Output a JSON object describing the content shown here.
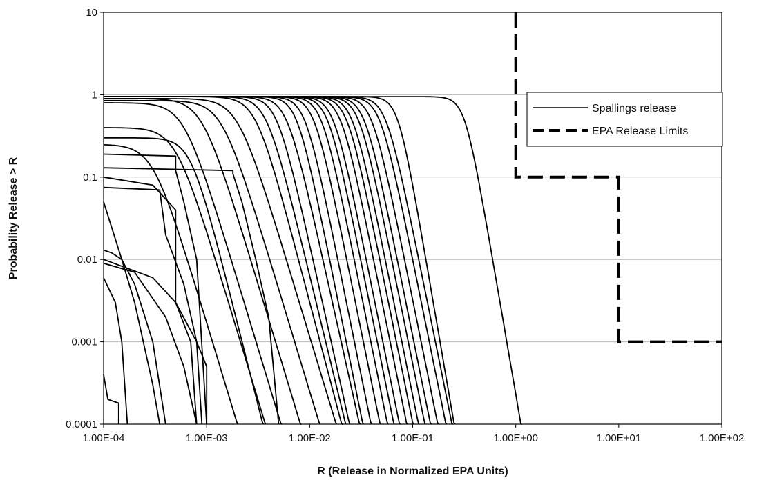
{
  "chart_data": {
    "type": "line",
    "title": "",
    "xlabel": "R (Release in Normalized EPA Units)",
    "ylabel": "Probability Release > R",
    "x_scale": "log",
    "y_scale": "log",
    "xlim": [
      0.0001,
      100
    ],
    "ylim": [
      0.0001,
      10
    ],
    "x_tick_labels": [
      "1.00E-04",
      "1.00E-03",
      "1.00E-02",
      "1.00E-01",
      "1.00E+00",
      "1.00E+01",
      "1.00E+02"
    ],
    "y_tick_labels": [
      "0.0001",
      "0.001",
      "0.01",
      "0.1",
      "1",
      "10"
    ],
    "grid": "horizontal",
    "legend_position": "top-right",
    "legend": [
      {
        "label": "Spallings release",
        "style": "solid",
        "color": "#000000"
      },
      {
        "label": "EPA Release Limits",
        "style": "dashed",
        "color": "#000000"
      }
    ],
    "series": [
      {
        "name": "EPA Release Limits",
        "style": "dashed",
        "points": [
          [
            1,
            10
          ],
          [
            1,
            0.1
          ],
          [
            10,
            0.1
          ],
          [
            10,
            0.001
          ],
          [
            100,
            0.001
          ]
        ]
      },
      {
        "name": "Spallings release",
        "style": "solid",
        "curves": [
          {
            "p0": 0.95,
            "r50": 0.32,
            "w": 0.17
          },
          {
            "p0": 0.95,
            "r50": 0.072,
            "w": 0.17
          },
          {
            "p0": 0.95,
            "r50": 0.055,
            "w": 0.2
          },
          {
            "p0": 0.95,
            "r50": 0.048,
            "w": 0.2
          },
          {
            "p0": 0.95,
            "r50": 0.04,
            "w": 0.2
          },
          {
            "p0": 0.95,
            "r50": 0.034,
            "w": 0.2
          },
          {
            "p0": 0.95,
            "r50": 0.03,
            "w": 0.2
          },
          {
            "p0": 0.95,
            "r50": 0.026,
            "w": 0.2
          },
          {
            "p0": 0.95,
            "r50": 0.023,
            "w": 0.2
          },
          {
            "p0": 0.95,
            "r50": 0.02,
            "w": 0.2
          },
          {
            "p0": 0.95,
            "r50": 0.017,
            "w": 0.2
          },
          {
            "p0": 0.95,
            "r50": 0.015,
            "w": 0.2
          },
          {
            "p0": 0.95,
            "r50": 0.013,
            "w": 0.2
          },
          {
            "p0": 0.95,
            "r50": 0.011,
            "w": 0.2
          },
          {
            "p0": 0.95,
            "r50": 0.009,
            "w": 0.2
          },
          {
            "p0": 0.95,
            "r50": 0.0075,
            "w": 0.2
          },
          {
            "p0": 0.95,
            "r50": 0.006,
            "w": 0.22
          },
          {
            "p0": 0.95,
            "r50": 0.0048,
            "w": 0.22
          },
          {
            "p0": 0.95,
            "r50": 0.0038,
            "w": 0.24
          },
          {
            "p0": 0.95,
            "r50": 0.003,
            "w": 0.26
          },
          {
            "p0": 0.9,
            "r50": 0.002,
            "w": 0.3
          },
          {
            "p0": 0.85,
            "r50": 0.0014,
            "w": 0.3
          },
          {
            "p0": 0.9,
            "r50": 0.0009,
            "w": 0.3
          },
          {
            "p0": 0.8,
            "r50": 0.0006,
            "w": 0.3
          },
          {
            "p0": 0.4,
            "r50": 0.0005,
            "w": 0.3
          },
          {
            "p0": 0.3,
            "r50": 0.0007,
            "w": 0.25
          },
          {
            "p0": 0.25,
            "r50": 0.0003,
            "w": 0.3
          }
        ],
        "steps": [
          [
            [
              0.0001,
              0.13
            ],
            [
              0.0018,
              0.12
            ],
            [
              0.0018,
              0.11
            ],
            [
              0.0022,
              0.05
            ],
            [
              0.003,
              0.01
            ],
            [
              0.004,
              0.002
            ],
            [
              0.005,
              0.0001
            ]
          ],
          [
            [
              0.0001,
              0.1
            ],
            [
              0.0003,
              0.08
            ],
            [
              0.0005,
              0.04
            ],
            [
              0.0005,
              0.003
            ],
            [
              0.0008,
              0.001
            ],
            [
              0.001,
              0.0005
            ],
            [
              0.001,
              0.0001
            ]
          ],
          [
            [
              0.0001,
              0.19
            ],
            [
              0.0005,
              0.18
            ],
            [
              0.0005,
              0.12
            ],
            [
              0.0006,
              0.05
            ],
            [
              0.0008,
              0.01
            ],
            [
              0.001,
              0.0001
            ]
          ],
          [
            [
              0.0001,
              0.075
            ],
            [
              0.00035,
              0.07
            ],
            [
              0.0004,
              0.02
            ],
            [
              0.0006,
              0.005
            ],
            [
              0.0008,
              0.001
            ],
            [
              0.0009,
              0.0001
            ]
          ],
          [
            [
              0.0001,
              0.013
            ],
            [
              0.00012,
              0.012
            ],
            [
              0.00015,
              0.01
            ],
            [
              0.0002,
              0.005
            ],
            [
              0.0003,
              0.001
            ],
            [
              0.0004,
              0.0001
            ]
          ],
          [
            [
              0.0001,
              0.009
            ],
            [
              0.0002,
              0.007
            ],
            [
              0.0004,
              0.002
            ],
            [
              0.0006,
              0.0005
            ],
            [
              0.0008,
              0.0001
            ]
          ],
          [
            [
              0.0001,
              0.006
            ],
            [
              0.00013,
              0.003
            ],
            [
              0.00015,
              0.001
            ],
            [
              0.00017,
              0.0001
            ]
          ],
          [
            [
              0.0001,
              0.0004
            ],
            [
              0.00011,
              0.0002
            ],
            [
              0.00014,
              0.00018
            ],
            [
              0.00014,
              0.0001
            ]
          ],
          [
            [
              0.0001,
              0.05
            ],
            [
              0.00015,
              0.01
            ],
            [
              0.0002,
              0.003
            ],
            [
              0.0003,
              0.0003
            ],
            [
              0.00035,
              0.0001
            ]
          ],
          [
            [
              0.0001,
              0.01
            ],
            [
              0.0003,
              0.006
            ],
            [
              0.0005,
              0.003
            ],
            [
              0.0007,
              0.001
            ],
            [
              0.0008,
              0.0001
            ]
          ]
        ]
      }
    ]
  }
}
